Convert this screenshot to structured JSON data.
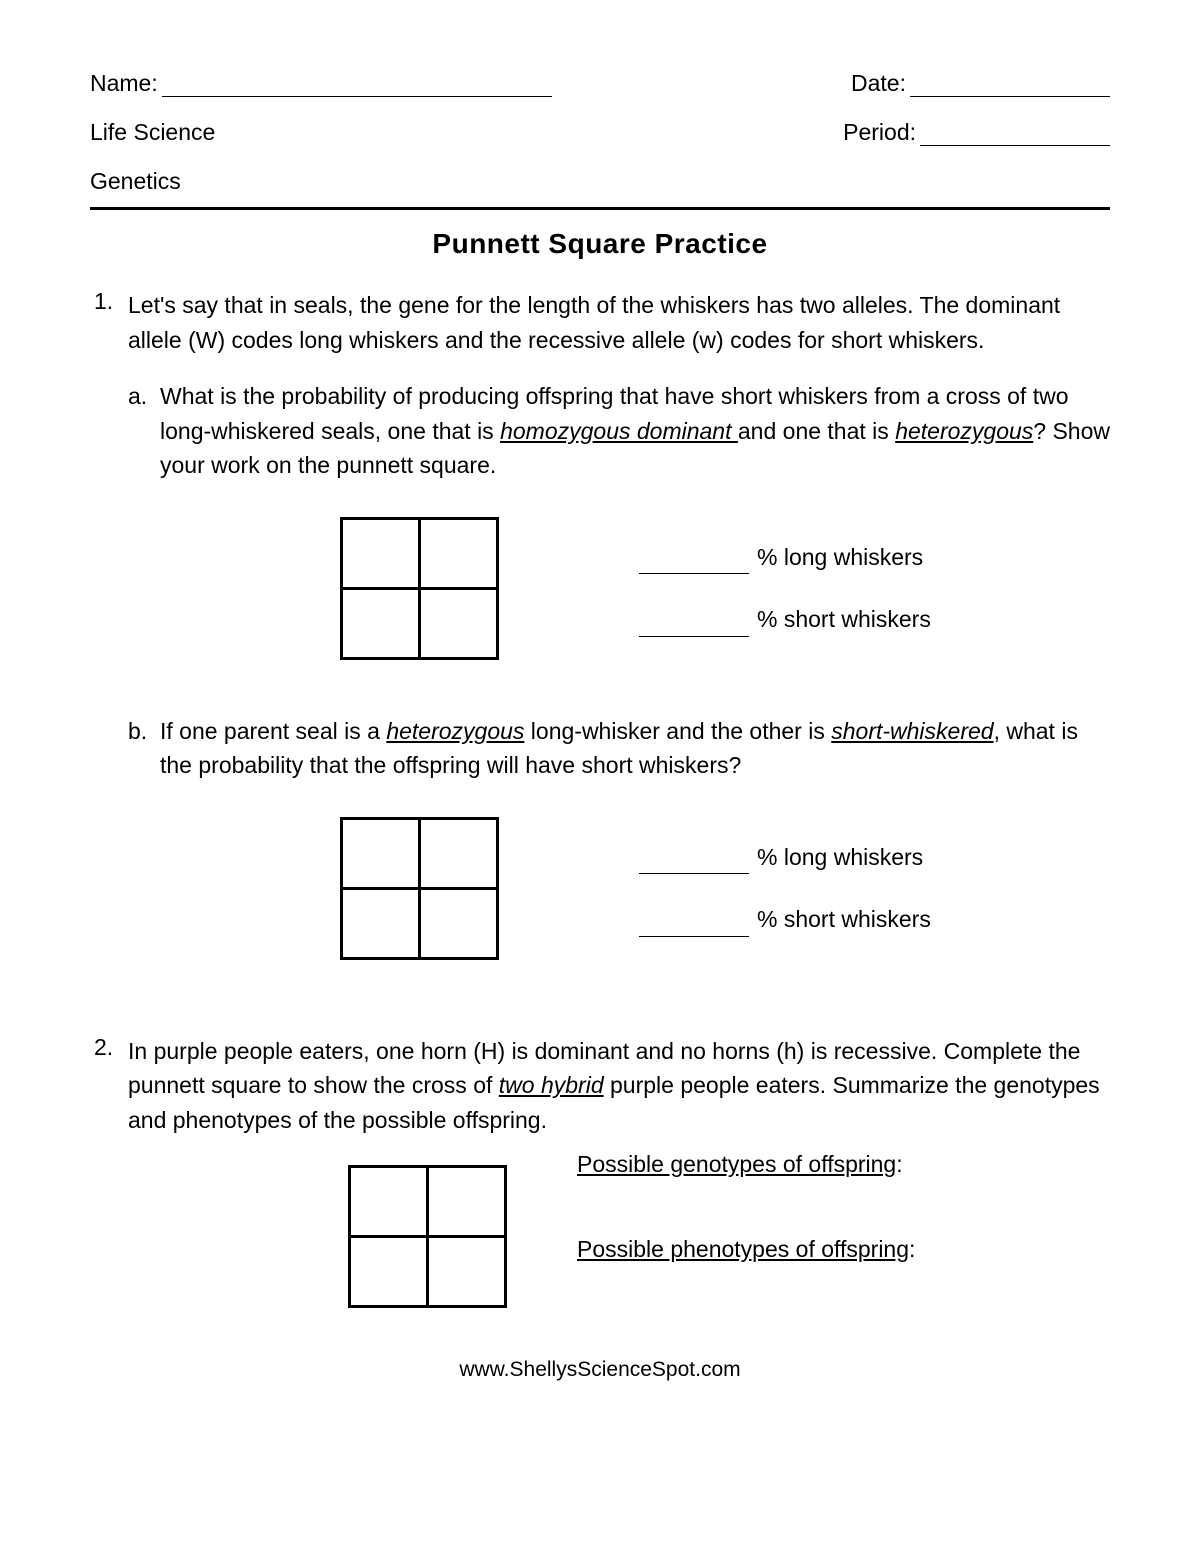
{
  "header": {
    "name_label": "Name:",
    "date_label": "Date:",
    "period_label": "Period:",
    "subject": "Life Science",
    "topic": "Genetics"
  },
  "title": "Punnett Square Practice",
  "q1": {
    "num": "1.",
    "intro": "Let's say that in seals, the gene for the length of the whiskers has two alleles. The dominant allele (W) codes long whiskers and the recessive allele (w) codes for short whiskers.",
    "a": {
      "letter": "a.",
      "text_before": "What is the probability of producing offspring that have short whiskers from a cross of two long-whiskered seals, one that is ",
      "homo": "homozygous dominant ",
      "text_mid": "and one that is ",
      "hetero": "heterozygous",
      "text_after": "?  Show your work on the punnett square.",
      "answer_long": "% long whiskers",
      "answer_short": "% short whiskers"
    },
    "b": {
      "letter": "b.",
      "text_before": "If one parent seal is a ",
      "hetero": "heterozygous",
      "text_mid": " long-whisker and the other is ",
      "short": "short-whiskered",
      "text_after": ", what is the probability that the offspring will have short whiskers?",
      "answer_long": "% long whiskers",
      "answer_short": "% short whiskers"
    }
  },
  "q2": {
    "num": "2.",
    "text_before": "In purple people eaters, one horn (H) is dominant and no horns (h) is recessive. Complete the punnett square to show the cross of ",
    "hybrid": "two hybrid",
    "text_after": " purple people eaters.  Summarize the genotypes and phenotypes of the possible offspring.",
    "genotypes_label": "Possible genotypes of offspring",
    "phenotypes_label": "Possible phenotypes of offspring"
  },
  "footer": "www.ShellysScienceSpot.com",
  "colors": {
    "text": "#000000",
    "background": "#ffffff",
    "border": "#000000"
  }
}
